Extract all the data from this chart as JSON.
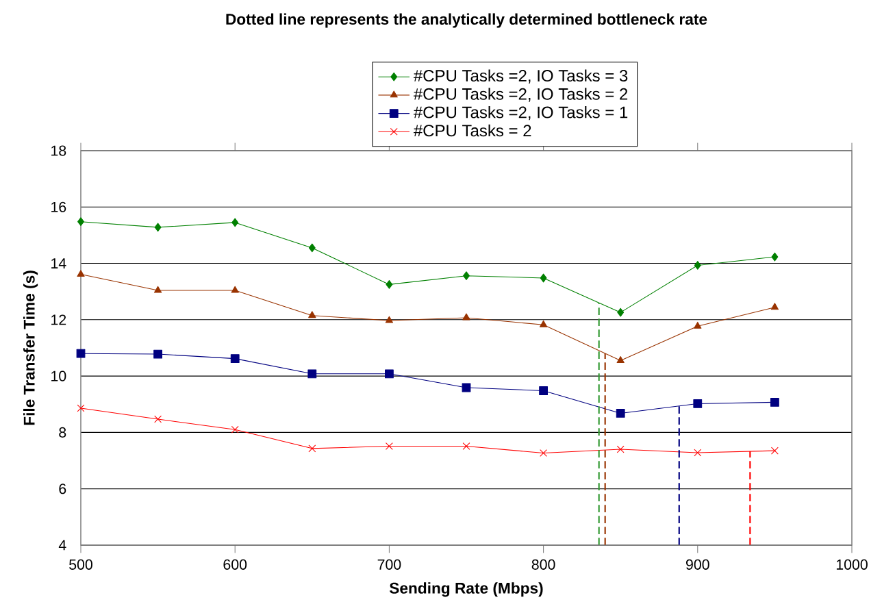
{
  "chart_data": {
    "type": "line",
    "title": "Dotted line represents the analytically determined bottleneck rate",
    "xlabel": "Sending Rate (Mbps)",
    "ylabel": "File Transfer Time (s)",
    "x": [
      500,
      550,
      600,
      650,
      700,
      750,
      800,
      850,
      900,
      950
    ],
    "series": [
      {
        "name": "#CPU Tasks =2, IO Tasks = 3",
        "color": "#008000",
        "marker": "diamond",
        "values": [
          15.48,
          15.28,
          15.45,
          14.55,
          13.25,
          13.56,
          13.48,
          12.26,
          13.93,
          14.23
        ]
      },
      {
        "name": "#CPU Tasks =2, IO Tasks = 2",
        "color": "#993300",
        "marker": "triangle",
        "values": [
          13.61,
          13.04,
          13.04,
          12.15,
          11.97,
          12.07,
          11.82,
          10.55,
          11.77,
          12.44
        ]
      },
      {
        "name": "#CPU Tasks =2, IO Tasks = 1",
        "color": "#000080",
        "marker": "square",
        "values": [
          10.8,
          10.78,
          10.62,
          10.08,
          10.08,
          9.59,
          9.48,
          8.68,
          9.02,
          9.07
        ]
      },
      {
        "name": "#CPU Tasks = 2",
        "color": "#ff0000",
        "marker": "cross",
        "values": [
          8.86,
          8.47,
          8.1,
          7.43,
          7.51,
          7.51,
          7.27,
          7.4,
          7.28,
          7.35
        ]
      }
    ],
    "ref_lines": [
      {
        "axis": "x",
        "value": 836,
        "color": "#339933",
        "line_style": "dashed"
      },
      {
        "axis": "x",
        "value": 840,
        "color": "#993300",
        "line_style": "dashed"
      },
      {
        "axis": "x",
        "value": 888,
        "color": "#000080",
        "line_style": "dashed"
      },
      {
        "axis": "x",
        "value": 934,
        "color": "#ff0000",
        "line_style": "dashed"
      }
    ],
    "xlim": [
      500,
      1000
    ],
    "ylim": [
      4,
      18
    ],
    "xticks": [
      500,
      600,
      700,
      800,
      900,
      1000
    ],
    "yticks": [
      4,
      6,
      8,
      10,
      12,
      14,
      16,
      18
    ],
    "grid": "y",
    "legend": "top",
    "line_style": "solid"
  }
}
